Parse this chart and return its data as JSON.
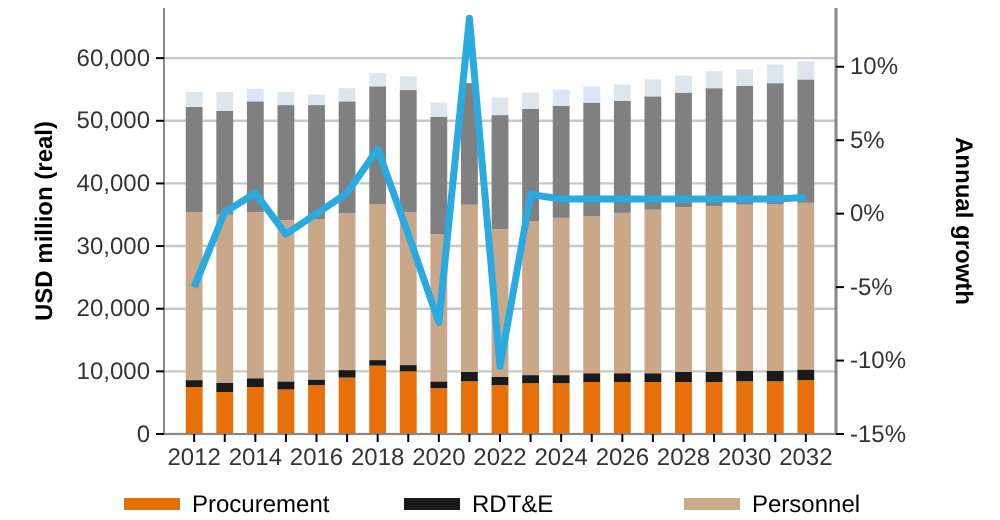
{
  "chart_data": {
    "type": "bar",
    "stacked": true,
    "ylabel": "USD million  (real)",
    "y2label": "Annual growth",
    "categories": [
      "2012",
      null,
      "2014",
      null,
      "2016",
      null,
      "2018",
      null,
      "2020",
      null,
      "2022",
      null,
      "2024",
      null,
      "2026",
      null,
      "2028",
      null,
      "2030",
      null,
      "2032"
    ],
    "series": [
      {
        "name": "Procurement",
        "color": "#e8700a",
        "values": [
          7500,
          6700,
          7500,
          7100,
          7800,
          9000,
          10900,
          10000,
          7300,
          8400,
          7800,
          8100,
          8100,
          8300,
          8300,
          8300,
          8300,
          8300,
          8400,
          8400,
          8600
        ]
      },
      {
        "name": "RDT&E",
        "color": "#1a1a1a",
        "values": [
          1100,
          1500,
          1400,
          1300,
          900,
          1200,
          900,
          1000,
          1100,
          1500,
          1300,
          1300,
          1300,
          1400,
          1400,
          1400,
          1600,
          1600,
          1700,
          1700,
          1700
        ]
      },
      {
        "name": "Personnel",
        "color": "#c8a888",
        "values": [
          26800,
          26800,
          26500,
          25700,
          25600,
          25000,
          24900,
          24400,
          23500,
          26700,
          23600,
          24600,
          25100,
          25100,
          25600,
          26100,
          26300,
          26500,
          26500,
          26600,
          26600
        ]
      },
      {
        "color": "#808080",
        "values": [
          16800,
          16600,
          17700,
          18400,
          18200,
          17900,
          18800,
          19500,
          18700,
          19400,
          18200,
          17900,
          17900,
          18100,
          17900,
          18100,
          18300,
          18800,
          19000,
          19300,
          19700
        ]
      },
      {
        "color": "#dde6ee",
        "values": [
          2400,
          3000,
          2000,
          2100,
          1700,
          2100,
          2100,
          2200,
          2300,
          null,
          2800,
          2600,
          2600,
          2600,
          2600,
          2700,
          2700,
          2700,
          2600,
          3000,
          2900
        ]
      },
      {
        "type": "line",
        "axis": "y2",
        "color": "#29abe2",
        "values": [
          -5.0,
          0.1,
          1.4,
          -1.4,
          0.0,
          1.4,
          4.4,
          -1.4,
          -7.4,
          13.3,
          -10.4,
          1.3,
          1.0,
          1.0,
          1.0,
          1.0,
          1.0,
          1.0,
          1.0,
          1.0,
          1.1
        ]
      }
    ],
    "ylim": [
      0,
      68000
    ],
    "yticks": [
      {
        "value": 0,
        "label": "0"
      },
      {
        "value": 10000,
        "label": "10,000"
      },
      {
        "value": 20000,
        "label": "20,000"
      },
      {
        "value": 30000,
        "label": "30,000"
      },
      {
        "value": 40000,
        "label": "40,000"
      },
      {
        "value": 50000,
        "label": "50,000"
      },
      {
        "value": 60000,
        "label": "60,000"
      }
    ],
    "y2lim": [
      -15,
      14
    ],
    "y2ticks": [
      {
        "value": -15,
        "label": "-15%"
      },
      {
        "value": -10,
        "label": "-10%"
      },
      {
        "value": -5,
        "label": "-5%"
      },
      {
        "value": 0,
        "label": "0%"
      },
      {
        "value": 5,
        "label": "5%"
      },
      {
        "value": 10,
        "label": "10%"
      }
    ],
    "grid": "y",
    "legend": "bottom",
    "marker": "none"
  }
}
